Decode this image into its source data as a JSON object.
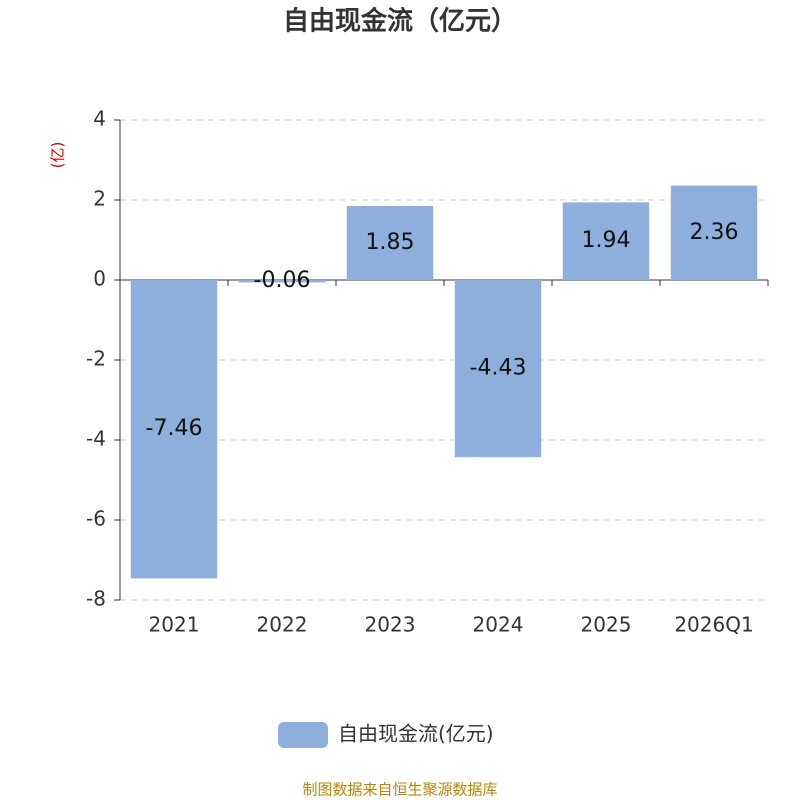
{
  "chart_data": {
    "type": "bar",
    "title": "自由现金流（亿元）",
    "y_label": "(亿)",
    "categories": [
      "2021",
      "2022",
      "2023",
      "2024",
      "2025",
      "2026Q1"
    ],
    "series": [
      {
        "name": "自由现金流(亿元)",
        "color": "#8eaedb",
        "values": [
          -7.46,
          -0.06,
          1.85,
          -4.43,
          1.94,
          2.36
        ]
      }
    ],
    "ylim": [
      -8,
      4
    ],
    "yticks": [
      -8,
      -6,
      -4,
      -2,
      0,
      2,
      4
    ],
    "grid": true,
    "legend": "bottom",
    "source": "制图数据来自恒生聚源数据库"
  }
}
